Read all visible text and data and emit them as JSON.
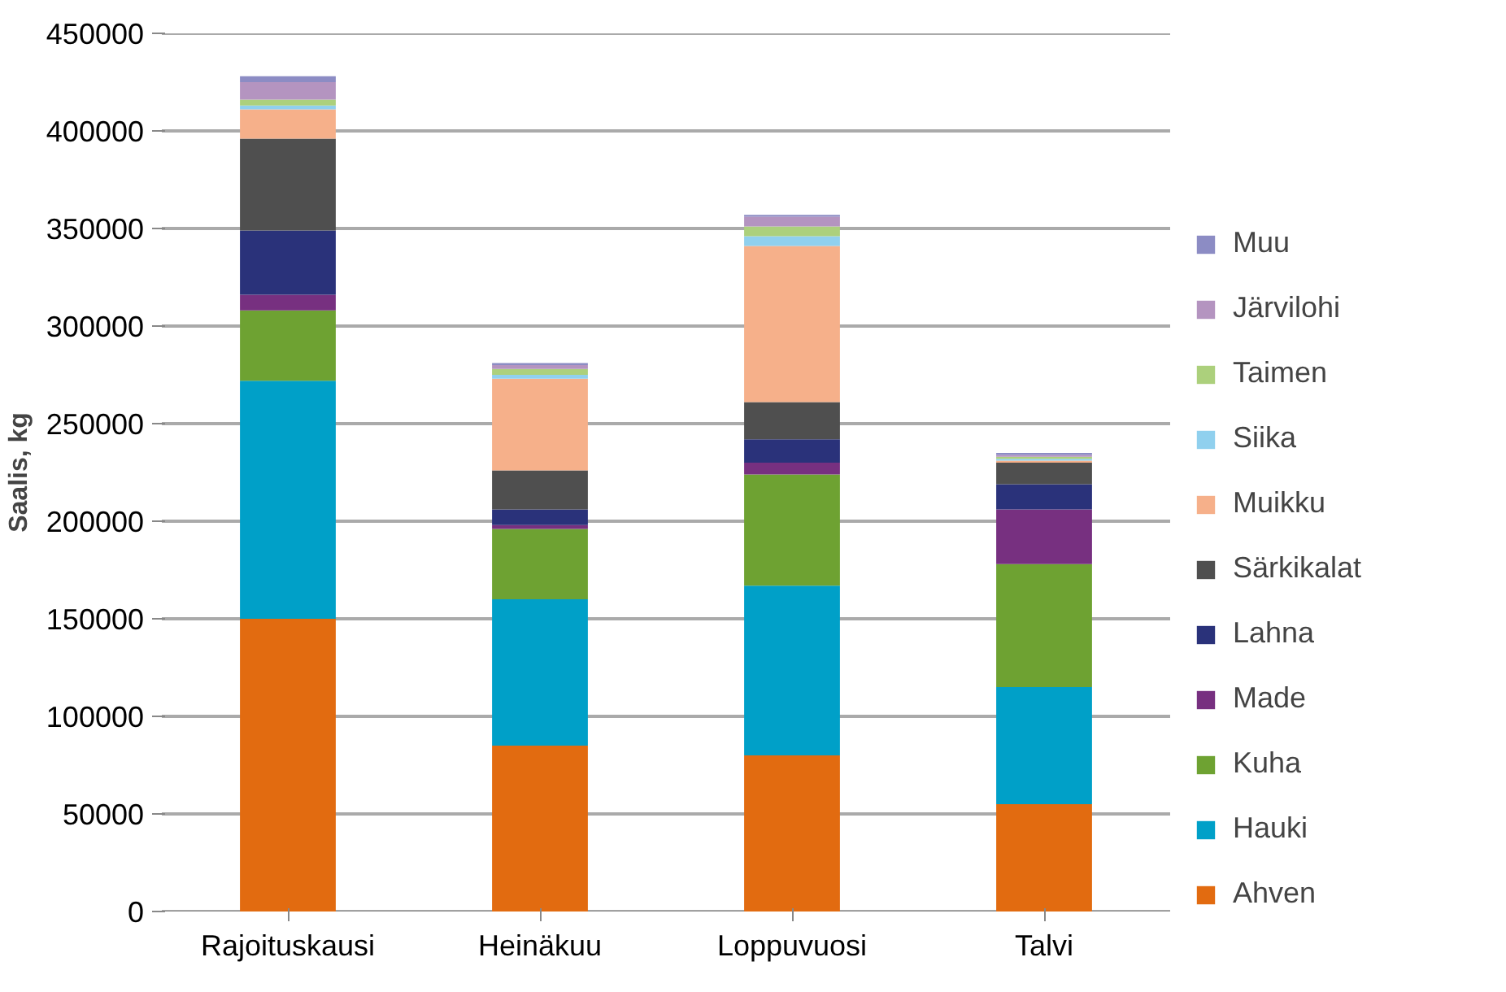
{
  "chart_data": {
    "type": "bar",
    "stacked": true,
    "ylabel": "Saalis, kg",
    "categories": [
      "Rajoituskausi",
      "Heinäkuu",
      "Loppuvuosi",
      "Talvi"
    ],
    "series": [
      {
        "name": "Ahven",
        "color": "#e26b10",
        "values": [
          150000,
          85000,
          80000,
          55000
        ]
      },
      {
        "name": "Hauki",
        "color": "#00a0c8",
        "values": [
          122000,
          75000,
          87000,
          60000
        ]
      },
      {
        "name": "Kuha",
        "color": "#6ea232",
        "values": [
          36000,
          36000,
          57000,
          63000
        ]
      },
      {
        "name": "Made",
        "color": "#773080",
        "values": [
          8000,
          2000,
          6000,
          28000
        ]
      },
      {
        "name": "Lahna",
        "color": "#2a327a",
        "values": [
          33000,
          8000,
          12000,
          13000
        ]
      },
      {
        "name": "Särkikalat",
        "color": "#4f4f4f",
        "values": [
          47000,
          20000,
          19000,
          11000
        ]
      },
      {
        "name": "Muikku",
        "color": "#f6b08a",
        "values": [
          15000,
          47000,
          80000,
          1000
        ]
      },
      {
        "name": "Siika",
        "color": "#90d0ee",
        "values": [
          2000,
          2000,
          5000,
          1000
        ]
      },
      {
        "name": "Taimen",
        "color": "#acd07c",
        "values": [
          3000,
          3000,
          5000,
          1000
        ]
      },
      {
        "name": "Järvilohi",
        "color": "#b494c0",
        "values": [
          9000,
          2000,
          5000,
          1000
        ]
      },
      {
        "name": "Muu",
        "color": "#8c8cc4",
        "values": [
          3000,
          1000,
          1000,
          1000
        ]
      }
    ],
    "ylim": [
      0,
      450000
    ],
    "yticks": [
      0,
      50000,
      100000,
      150000,
      200000,
      250000,
      300000,
      350000,
      400000,
      450000
    ],
    "grid": "y",
    "legend": "right"
  }
}
